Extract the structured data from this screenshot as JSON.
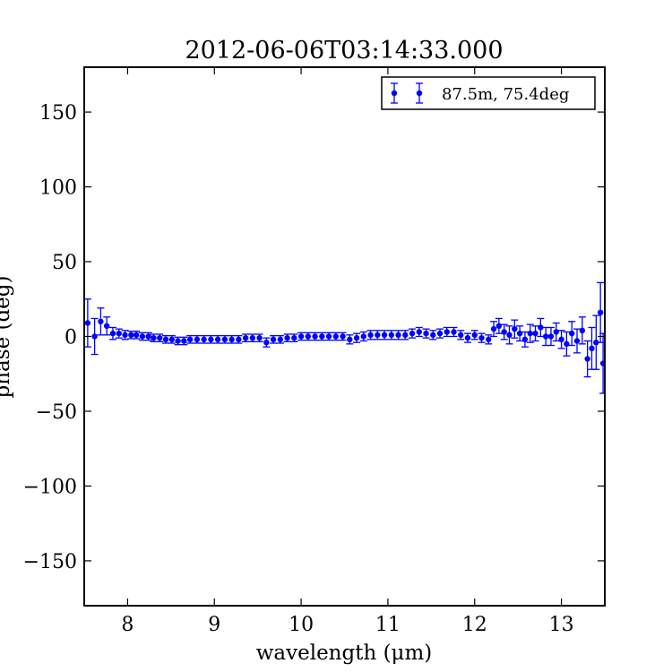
{
  "chart_data": {
    "type": "scatter",
    "title": "2012-06-06T03:14:33.000",
    "xlabel": "wavelength (μm)",
    "ylabel": "phase (deg)",
    "xlim": [
      7.5,
      13.5
    ],
    "ylim": [
      -180,
      180
    ],
    "x_ticks": [
      8,
      9,
      10,
      11,
      12,
      13
    ],
    "y_ticks": [
      150,
      100,
      50,
      0,
      -50,
      -100,
      -150
    ],
    "x_tick_labels": [
      "8",
      "9",
      "10",
      "11",
      "12",
      "13"
    ],
    "y_tick_labels": [
      "150",
      "100",
      "50",
      "0",
      "−50",
      "−100",
      "−150"
    ],
    "grid": false,
    "legend_position": "top-right",
    "color": "#0000ff",
    "series": [
      {
        "name": "87.5m, 75.4deg",
        "points": [
          {
            "x": 7.54,
            "y": 9,
            "err": 16
          },
          {
            "x": 7.62,
            "y": 0,
            "err": 12
          },
          {
            "x": 7.69,
            "y": 10,
            "err": 9
          },
          {
            "x": 7.76,
            "y": 7,
            "err": 6
          },
          {
            "x": 7.83,
            "y": 2,
            "err": 4
          },
          {
            "x": 7.9,
            "y": 2,
            "err": 3
          },
          {
            "x": 7.97,
            "y": 1,
            "err": 3
          },
          {
            "x": 8.04,
            "y": 1,
            "err": 2.5
          },
          {
            "x": 8.1,
            "y": 1,
            "err": 2.5
          },
          {
            "x": 8.17,
            "y": 0,
            "err": 2.5
          },
          {
            "x": 8.24,
            "y": 0,
            "err": 2.5
          },
          {
            "x": 8.3,
            "y": -1,
            "err": 2.5
          },
          {
            "x": 8.37,
            "y": -1,
            "err": 2.5
          },
          {
            "x": 8.44,
            "y": -2,
            "err": 2.5
          },
          {
            "x": 8.51,
            "y": -2,
            "err": 2.5
          },
          {
            "x": 8.58,
            "y": -3,
            "err": 2.5
          },
          {
            "x": 8.65,
            "y": -3,
            "err": 2.5
          },
          {
            "x": 8.72,
            "y": -2,
            "err": 2.5
          },
          {
            "x": 8.8,
            "y": -2,
            "err": 2.5
          },
          {
            "x": 8.88,
            "y": -2,
            "err": 2.5
          },
          {
            "x": 8.96,
            "y": -2,
            "err": 2.5
          },
          {
            "x": 9.04,
            "y": -2,
            "err": 2.5
          },
          {
            "x": 9.12,
            "y": -2,
            "err": 2.5
          },
          {
            "x": 9.2,
            "y": -2,
            "err": 2.5
          },
          {
            "x": 9.28,
            "y": -2,
            "err": 2.5
          },
          {
            "x": 9.36,
            "y": -1,
            "err": 2.5
          },
          {
            "x": 9.44,
            "y": -1,
            "err": 2.5
          },
          {
            "x": 9.52,
            "y": -1,
            "err": 2.5
          },
          {
            "x": 9.6,
            "y": -4,
            "err": 3
          },
          {
            "x": 9.68,
            "y": -2,
            "err": 2.5
          },
          {
            "x": 9.76,
            "y": -2,
            "err": 2.5
          },
          {
            "x": 9.84,
            "y": -1,
            "err": 2.5
          },
          {
            "x": 9.92,
            "y": -1,
            "err": 2.5
          },
          {
            "x": 10.0,
            "y": 0,
            "err": 2.5
          },
          {
            "x": 10.08,
            "y": 0,
            "err": 2.5
          },
          {
            "x": 10.16,
            "y": 0,
            "err": 2.5
          },
          {
            "x": 10.24,
            "y": 0,
            "err": 2.5
          },
          {
            "x": 10.32,
            "y": 0,
            "err": 2.5
          },
          {
            "x": 10.4,
            "y": 0,
            "err": 2.5
          },
          {
            "x": 10.48,
            "y": 0,
            "err": 2.5
          },
          {
            "x": 10.56,
            "y": -2,
            "err": 3
          },
          {
            "x": 10.64,
            "y": -1,
            "err": 3
          },
          {
            "x": 10.72,
            "y": 0,
            "err": 3
          },
          {
            "x": 10.8,
            "y": 1,
            "err": 3
          },
          {
            "x": 10.88,
            "y": 1,
            "err": 3
          },
          {
            "x": 10.96,
            "y": 1,
            "err": 3
          },
          {
            "x": 11.04,
            "y": 1,
            "err": 3
          },
          {
            "x": 11.12,
            "y": 1,
            "err": 3
          },
          {
            "x": 11.2,
            "y": 1,
            "err": 3
          },
          {
            "x": 11.28,
            "y": 2,
            "err": 3
          },
          {
            "x": 11.36,
            "y": 3,
            "err": 3
          },
          {
            "x": 11.44,
            "y": 2,
            "err": 3
          },
          {
            "x": 11.52,
            "y": 1,
            "err": 3
          },
          {
            "x": 11.6,
            "y": 2,
            "err": 3
          },
          {
            "x": 11.68,
            "y": 3,
            "err": 3
          },
          {
            "x": 11.76,
            "y": 3,
            "err": 3
          },
          {
            "x": 11.84,
            "y": 1,
            "err": 3
          },
          {
            "x": 11.92,
            "y": -1,
            "err": 3
          },
          {
            "x": 12.0,
            "y": 1,
            "err": 3
          },
          {
            "x": 12.08,
            "y": -1,
            "err": 3
          },
          {
            "x": 12.16,
            "y": -2,
            "err": 3
          },
          {
            "x": 12.22,
            "y": 5,
            "err": 5
          },
          {
            "x": 12.28,
            "y": 7,
            "err": 5
          },
          {
            "x": 12.34,
            "y": 3,
            "err": 5
          },
          {
            "x": 12.4,
            "y": 1,
            "err": 6
          },
          {
            "x": 12.46,
            "y": 5,
            "err": 6
          },
          {
            "x": 12.52,
            "y": 2,
            "err": 5
          },
          {
            "x": 12.58,
            "y": -2,
            "err": 5
          },
          {
            "x": 12.64,
            "y": 2,
            "err": 6
          },
          {
            "x": 12.7,
            "y": 2,
            "err": 5
          },
          {
            "x": 12.76,
            "y": 6,
            "err": 6
          },
          {
            "x": 12.82,
            "y": 0,
            "err": 6
          },
          {
            "x": 12.88,
            "y": 0,
            "err": 6
          },
          {
            "x": 12.94,
            "y": 3,
            "err": 6
          },
          {
            "x": 13.0,
            "y": -2,
            "err": 6
          },
          {
            "x": 13.06,
            "y": -5,
            "err": 8
          },
          {
            "x": 13.12,
            "y": 2,
            "err": 8
          },
          {
            "x": 13.18,
            "y": -3,
            "err": 8
          },
          {
            "x": 13.24,
            "y": 4,
            "err": 9
          },
          {
            "x": 13.3,
            "y": -15,
            "err": 12
          },
          {
            "x": 13.35,
            "y": -8,
            "err": 14
          },
          {
            "x": 13.4,
            "y": -4,
            "err": 18
          },
          {
            "x": 13.45,
            "y": 16,
            "err": 20
          },
          {
            "x": 13.48,
            "y": -18,
            "err": 20
          }
        ]
      }
    ]
  }
}
